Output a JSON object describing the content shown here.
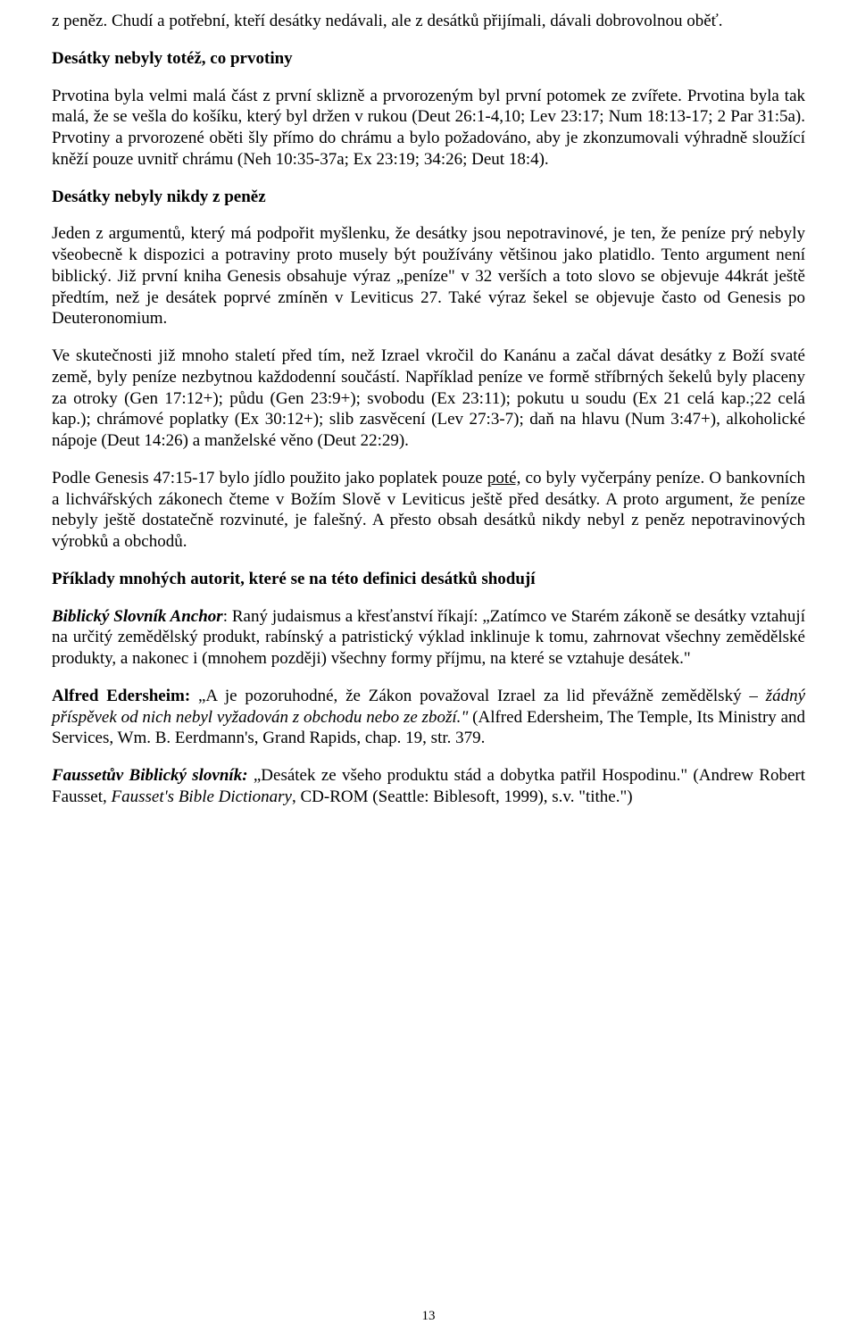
{
  "para_intro": "z peněz. Chudí a potřební, kteří desátky nedávali, ale z desátků přijímali, dávali dobrovolnou oběť.",
  "h1": "Desátky nebyly totéž, co prvotiny",
  "p1": "Prvotina byla velmi malá část z první sklizně a prvorozeným byl první potomek ze zvířete. Prvotina byla tak malá, že se vešla do košíku, který byl držen v rukou (Deut 26:1-4,10; Lev 23:17; Num 18:13-17; 2 Par 31:5a). Prvotiny a prvorozené oběti šly přímo do chrámu a bylo požadováno, aby je zkonzumovali výhradně sloužící kněží pouze uvnitř chrámu (Neh 10:35-37a; Ex 23:19; 34:26; Deut 18:4).",
  "h2": "Desátky nebyly nikdy z peněz",
  "p2": "Jeden z argumentů, který má podpořit myšlenku, že desátky jsou nepotravinové, je ten, že peníze prý nebyly všeobecně k dispozici a potraviny proto musely být používány většinou jako platidlo. Tento argument není biblický. Již první kniha Genesis obsahuje výraz „peníze\" v 32 verších a toto slovo se objevuje 44krát ještě předtím, než je desátek poprvé zmíněn v  Leviticus 27. Také výraz šekel se objevuje často od Genesis po Deuteronomium.",
  "p3": "Ve skutečnosti již mnoho staletí před tím, než Izrael vkročil do Kanánu a začal dávat desátky z Boží svaté země, byly peníze nezbytnou každodenní součástí. Například peníze ve formě stříbrných šekelů byly placeny za otroky (Gen 17:12+); půdu (Gen 23:9+); svobodu (Ex 23:11); pokutu u soudu (Ex 21 celá kap.;22 celá kap.); chrámové poplatky (Ex 30:12+); slib zasvěcení (Lev 27:3-7); daň na hlavu (Num 3:47+), alkoholické nápoje (Deut 14:26) a manželské věno (Deut 22:29).",
  "p4a": "Podle Genesis 47:15-17 bylo jídlo použito jako poplatek pouze ",
  "p4_u": "poté,",
  "p4b": " co byly vyčerpány peníze. O bankovních a lichvářských zákonech čteme v Božím Slově v Leviticus ještě před desátky. A proto argument, že peníze nebyly ještě dostatečně rozvinuté, je falešný. A přesto obsah desátků nikdy nebyl z peněz nepotravinových výrobků a obchodů.",
  "h3": "Příklady mnohých autorit, které se na této definici desátků shodují",
  "p5_lead": "Biblický Slovník Anchor",
  "p5": ": Raný judaismus a křesťanství říkají: „Zatímco ve Starém zákoně se desátky vztahují na určitý zemědělský produkt, rabínský a patristický výklad inklinuje k tomu, zahrnovat všechny zemědělské produkty, a nakonec i (mnohem později) všechny formy příjmu, na které se vztahuje desátek.\"",
  "p6_lead": "Alfred Edersheim:",
  "p6a": " „A je pozoruhodné, že Zákon považoval Izrael za lid převážně zemědělský – ",
  "p6_it": "žádný příspěvek od nich nebyl vyžadován z obchodu nebo ze zboží.\"",
  "p6b": " (Alfred Edersheim, The Temple, Its Ministry and Services, Wm. B. Eerdmann's, Grand Rapids, chap. 19, str. 379.",
  "p7_lead": "Faussetův Biblický slovník:",
  "p7a": " „Desátek ze všeho produktu stád a dobytka patřil Hospodinu.\" (Andrew Robert Fausset, ",
  "p7_it": "Fausset's Bible Dictionary",
  "p7b": ", CD-ROM (Seattle: Biblesoft, 1999), s.v. \"tithe.\")",
  "pagenum": "13"
}
